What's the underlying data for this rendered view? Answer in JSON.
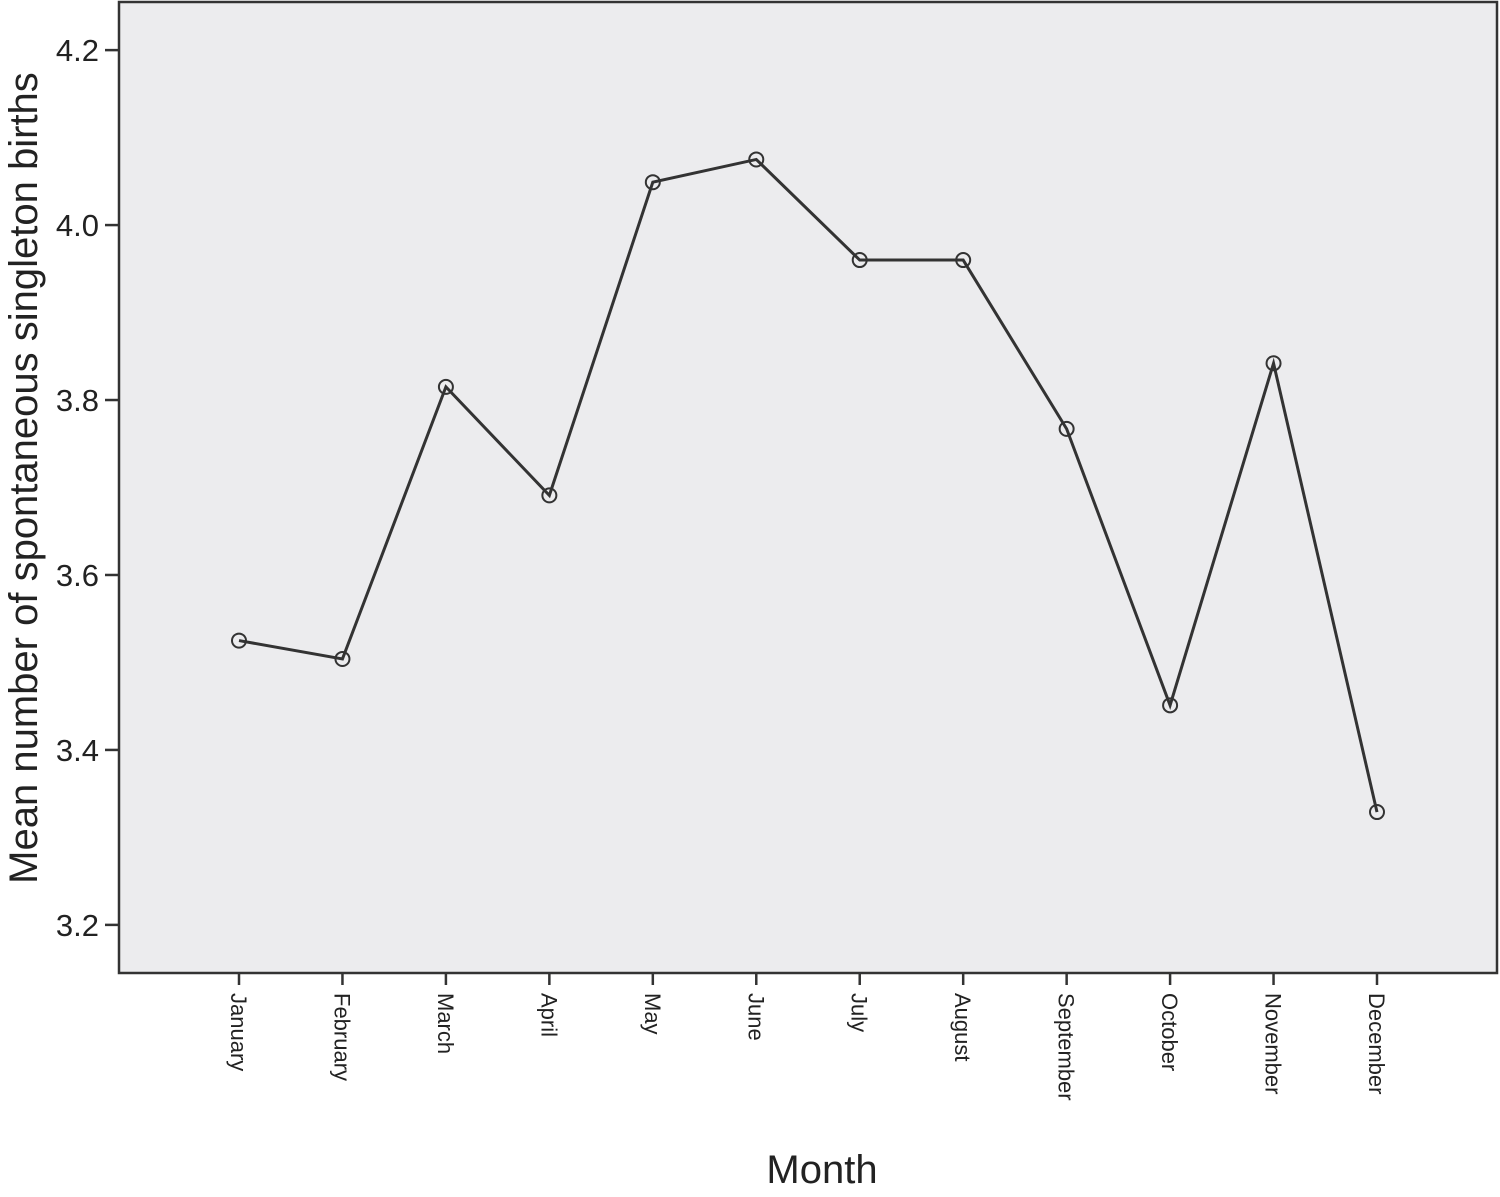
{
  "chart_data": {
    "type": "line",
    "y_label": "Mean number of spontaneous singleton births",
    "x_label": "Month",
    "categories": [
      "January",
      "February",
      "March",
      "April",
      "May",
      "June",
      "July",
      "August",
      "September",
      "October",
      "November",
      "December"
    ],
    "values": [
      3.525,
      3.504,
      3.815,
      3.691,
      4.049,
      4.075,
      3.96,
      3.96,
      3.767,
      3.451,
      3.842,
      3.329
    ],
    "color": "#333333",
    "background": "#ececee",
    "ylim": [
      3.145,
      4.255
    ],
    "yticks": [
      3.2,
      3.4,
      3.6,
      3.8,
      {
        "value": 4,
        "label": "4.0"
      },
      4.2
    ]
  }
}
